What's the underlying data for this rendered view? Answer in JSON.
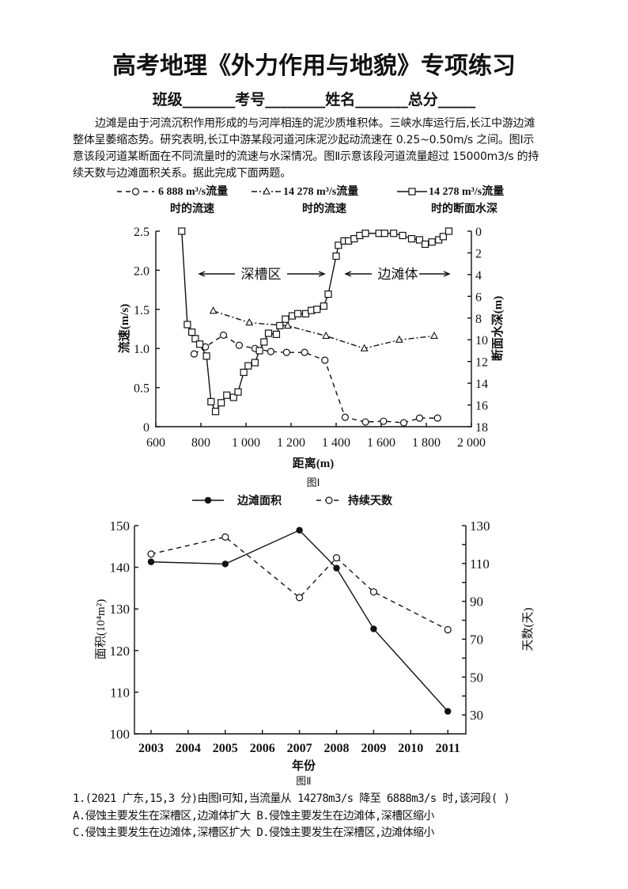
{
  "title": "高考地理《外力作用与地貌》专项练习",
  "info_line": "班级_______考号________姓名_______总分_____",
  "passage_lines": [
    "边滩是由于河流沉积作用形成的与河岸相连的泥沙质堆积体。三峡水库运行后,长江中游边滩",
    "整体呈萎缩态势。研究表明,长江中游某段河道河床泥沙起动流速在 0.25~0.50m/s 之间。图Ⅰ示",
    "意该段河道某断面在不同流量时的流速与水深情况。图Ⅱ示意该段河道流量超过 15000m3/s 的持",
    "续天数与边滩面积关系。据此完成下面两题。"
  ],
  "question": {
    "stem": "1.(2021 广东,15,3 分)由图Ⅰ可知,当流量从 14278m3/s 降至 6888m3/s 时,该河段(      )",
    "option_line_1": "A.侵蚀主要发生在深槽区,边滩体扩大 B.侵蚀主要发生在边滩体,深槽区缩小",
    "option_line_2": "C.侵蚀主要发生在边滩体,深槽区扩大 D.侵蚀主要发生在深槽区,边滩体缩小"
  },
  "chart_data": [
    {
      "type": "line",
      "caption": "图Ⅰ",
      "xlabel": "距离(m)",
      "ylabel": "流速(m/s)",
      "y2label": "断面水深(m)",
      "xlim": [
        600,
        2000
      ],
      "ylim": [
        0,
        2.5
      ],
      "y2lim": [
        18,
        0
      ],
      "x_ticks": [
        "600",
        "800",
        "1 000",
        "1 200",
        "1 400",
        "1 600",
        "1 800",
        "2 000"
      ],
      "y_ticks": [
        "0",
        "0.5",
        "1.0",
        "1.5",
        "2.0",
        "2.5"
      ],
      "y2_ticks": [
        "0",
        "2",
        "4",
        "6",
        "8",
        "10",
        "12",
        "14",
        "16",
        "18"
      ],
      "grid": false,
      "legend": "top",
      "annotations": [
        {
          "label": "深槽区"
        },
        {
          "label": "边滩体"
        }
      ],
      "series": [
        {
          "name": "6 888 m³/s流量",
          "name_line2": "时的流速",
          "axis": "left",
          "marker": "circle",
          "style": "dashed",
          "x": [
            770,
            820,
            900,
            970,
            1040,
            1110,
            1180,
            1260,
            1350,
            1440,
            1530,
            1610,
            1700,
            1770,
            1850
          ],
          "y": [
            0.93,
            1.02,
            1.17,
            1.04,
            1.0,
            0.96,
            0.95,
            0.95,
            0.85,
            0.12,
            0.06,
            0.07,
            0.05,
            0.11,
            0.11
          ]
        },
        {
          "name": "14 278 m³/s流量",
          "name_line2": "时的流速",
          "axis": "left",
          "marker": "triangle",
          "style": "dashdot",
          "x": [
            855,
            1015,
            1185,
            1355,
            1525,
            1680,
            1835
          ],
          "y": [
            1.48,
            1.33,
            1.29,
            1.16,
            1.0,
            1.11,
            1.16
          ]
        },
        {
          "name": "14 278 m³/s流量",
          "name_line2": "时的断面水深",
          "axis": "right",
          "marker": "square",
          "style": "solid",
          "x": [
            715,
            740,
            760,
            775,
            795,
            825,
            845,
            865,
            890,
            915,
            945,
            965,
            990,
            1010,
            1040,
            1060,
            1080,
            1100,
            1135,
            1150,
            1175,
            1205,
            1230,
            1265,
            1290,
            1315,
            1345,
            1365,
            1400,
            1410,
            1435,
            1455,
            1480,
            1505,
            1530,
            1590,
            1615,
            1655,
            1695,
            1735,
            1770,
            1795,
            1825,
            1855,
            1875,
            1900
          ],
          "y": [
            0,
            8.6,
            9.3,
            9.9,
            10.4,
            11.5,
            15.7,
            16.6,
            15.8,
            15.1,
            15.3,
            14.8,
            13.0,
            12.4,
            12.1,
            11.0,
            10.2,
            9.4,
            9.5,
            8.7,
            8.1,
            7.8,
            7.6,
            7.6,
            7.3,
            7.2,
            6.9,
            5.8,
            2.3,
            1.3,
            0.9,
            0.9,
            0.7,
            0.4,
            0.2,
            0.2,
            0.2,
            0.2,
            0.4,
            0.7,
            0.8,
            1.2,
            1.0,
            0.8,
            0.5,
            0
          ]
        }
      ]
    },
    {
      "type": "line",
      "caption": "图Ⅱ",
      "xlabel": "年份",
      "ylabel": "面积(10⁴m²)",
      "y2label": "天数(天)",
      "categories": [
        "2003",
        "2004",
        "2005",
        "2006",
        "2007",
        "2008",
        "2009",
        "2010",
        "2011"
      ],
      "ylim": [
        100,
        150
      ],
      "y2lim": [
        20,
        130
      ],
      "y_ticks": [
        "100",
        "110",
        "120",
        "130",
        "140",
        "150"
      ],
      "y2_ticks": [
        "30",
        "50",
        "70",
        "90",
        "110",
        "130"
      ],
      "grid": false,
      "legend": "top",
      "series": [
        {
          "name": "边滩面积",
          "axis": "left",
          "marker": "filled-circle",
          "style": "solid",
          "x": [
            2003,
            2005,
            2007,
            2008,
            2009,
            2011
          ],
          "y": [
            141.3,
            140.8,
            148.9,
            139.8,
            125.2,
            105.4
          ]
        },
        {
          "name": "持续天数",
          "axis": "right",
          "marker": "open-circle",
          "style": "dashed",
          "x": [
            2003,
            2005,
            2007,
            2008,
            2009,
            2011
          ],
          "y": [
            115,
            124,
            92,
            113,
            95,
            75
          ]
        }
      ]
    }
  ]
}
